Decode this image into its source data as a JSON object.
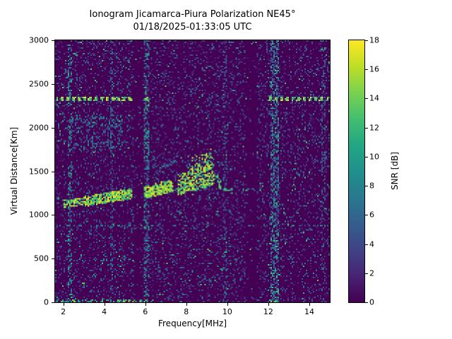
{
  "chart_data": {
    "type": "heatmap",
    "title": "Ionogram Jicamarca-Piura Polarization NE45°",
    "subtitle": "01/18/2025-01:33:05 UTC",
    "xlabel": "Frequency[MHz]",
    "ylabel": "Virtual Distance[Km]",
    "colorbar_label": "SNR [dB]",
    "colormap": "viridis",
    "xlim": [
      1.6,
      15.0
    ],
    "ylim": [
      0,
      3000
    ],
    "clim": [
      0,
      18
    ],
    "x_ticks": [
      2,
      4,
      6,
      8,
      10,
      12,
      14
    ],
    "y_ticks": [
      0,
      500,
      1000,
      1500,
      2000,
      2500,
      3000
    ],
    "colorbar_ticks": [
      0,
      2,
      4,
      6,
      8,
      10,
      12,
      14,
      16,
      18
    ],
    "background_color": "#440154",
    "noise": {
      "seed": 11,
      "speckle_probability": 0.28,
      "speckle_max_db": 7,
      "bright_speckle_probability": 0.012,
      "bright_speckle_db": [
        8,
        14
      ]
    },
    "features": {
      "echo_trace_segments": [
        {
          "f0": 2.0,
          "f1": 3.0,
          "alt0": 1130,
          "alt1": 1155,
          "half_width_km": 45,
          "density": 0.75,
          "db": [
            8,
            18
          ],
          "spread_km": 0
        },
        {
          "f0": 3.0,
          "f1": 5.35,
          "alt0": 1155,
          "alt1": 1245,
          "half_width_km": 60,
          "density": 0.85,
          "db": [
            9,
            18
          ],
          "spread_km": 0
        },
        {
          "f0": 5.95,
          "f1": 7.35,
          "alt0": 1245,
          "alt1": 1325,
          "half_width_km": 60,
          "density": 0.85,
          "db": [
            9,
            18
          ],
          "spread_km": 30
        },
        {
          "f0": 7.55,
          "f1": 8.3,
          "alt0": 1290,
          "alt1": 1360,
          "half_width_km": 75,
          "density": 0.65,
          "db": [
            8,
            18
          ],
          "spread_km": 130
        },
        {
          "f0": 8.3,
          "f1": 9.35,
          "alt0": 1360,
          "alt1": 1440,
          "half_width_km": 95,
          "density": 0.7,
          "db": [
            8,
            18
          ],
          "spread_km": 230
        },
        {
          "f0": 9.35,
          "f1": 9.7,
          "alt0": 1440,
          "alt1": 1340,
          "half_width_km": 60,
          "density": 0.45,
          "db": [
            6,
            14
          ],
          "spread_km": 0
        }
      ],
      "rfi_horizontal_lines": [
        {
          "alt": 2330,
          "f0": 1.7,
          "f1": 5.35,
          "half_width_km": 20,
          "density": 0.8,
          "db": [
            10,
            18
          ],
          "dashed": true
        },
        {
          "alt": 2330,
          "f0": 5.95,
          "f1": 6.3,
          "half_width_km": 20,
          "density": 0.75,
          "db": [
            10,
            18
          ],
          "dashed": true
        },
        {
          "alt": 2330,
          "f0": 12.0,
          "f1": 15.0,
          "half_width_km": 20,
          "density": 0.75,
          "db": [
            10,
            18
          ],
          "dashed": true
        },
        {
          "alt": 880,
          "f0": 1.6,
          "f1": 15.0,
          "half_width_km": 15,
          "density": 0.3,
          "db": [
            4,
            12
          ],
          "dashed": true
        },
        {
          "alt": 480,
          "f0": 1.7,
          "f1": 5.3,
          "half_width_km": 15,
          "density": 0.28,
          "db": [
            3,
            10
          ],
          "dashed": true
        },
        {
          "alt": 1285,
          "f0": 9.7,
          "f1": 11.6,
          "half_width_km": 15,
          "density": 0.5,
          "db": [
            6,
            14
          ],
          "dashed": true
        },
        {
          "alt": 20,
          "f0": 1.7,
          "f1": 6.4,
          "half_width_km": 15,
          "density": 0.5,
          "db": [
            8,
            16
          ],
          "dashed": true
        },
        {
          "alt": 20,
          "f0": 12.05,
          "f1": 12.6,
          "half_width_km": 15,
          "density": 0.5,
          "db": [
            8,
            16
          ],
          "dashed": true
        }
      ],
      "noisy_vertical_bands": [
        {
          "f0": 2.2,
          "f1": 2.45,
          "density": 0.4,
          "db": [
            2,
            12
          ]
        },
        {
          "f0": 4.25,
          "f1": 4.45,
          "density": 0.3,
          "db": [
            2,
            9
          ]
        },
        {
          "f0": 5.95,
          "f1": 6.2,
          "density": 0.45,
          "db": [
            2,
            12
          ]
        },
        {
          "f0": 9.8,
          "f1": 10.0,
          "density": 0.25,
          "db": [
            2,
            8
          ]
        },
        {
          "f0": 12.1,
          "f1": 12.55,
          "density": 0.5,
          "db": [
            2,
            13
          ]
        },
        {
          "f0": 14.6,
          "f1": 14.8,
          "density": 0.25,
          "db": [
            2,
            8
          ]
        }
      ],
      "quiet_vertical_bands": [
        {
          "f0": 5.45,
          "f1": 5.9,
          "factor": 0.45
        },
        {
          "f0": 10.9,
          "f1": 11.45,
          "factor": 0.25
        }
      ],
      "noise_clusters": [
        {
          "f0": 2.3,
          "f1": 4.9,
          "alt0": 1750,
          "alt1": 2150,
          "density": 0.22,
          "db": [
            2,
            10
          ]
        },
        {
          "f0": 2.0,
          "f1": 2.7,
          "alt0": 2550,
          "alt1": 2680,
          "density": 0.18,
          "db": [
            2,
            8
          ]
        },
        {
          "f0": 6.3,
          "f1": 7.6,
          "alt0": 1450,
          "alt1": 1700,
          "density": 0.15,
          "db": [
            2,
            8
          ]
        }
      ]
    }
  }
}
